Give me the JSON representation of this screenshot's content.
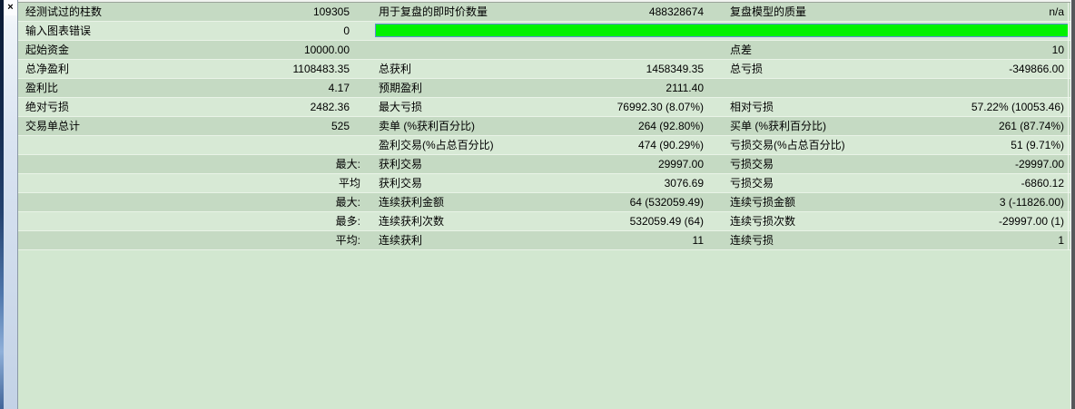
{
  "panel": {
    "close_icon": "×"
  },
  "colors": {
    "row_dark": "#c5dac3",
    "row_light": "#d7e9d5",
    "bar_fill": "#00f200",
    "bar_border": "#5c8ed2"
  },
  "report": {
    "rows": [
      {
        "l1": "经测试过的柱数",
        "v1": "109305",
        "l2": "用于复盘的即时价数量",
        "v2": "488328674",
        "l3": "复盘模型的质量",
        "v3": "n/a"
      },
      {
        "l1": "输入图表错误",
        "v1": "0",
        "bar": true
      },
      {
        "l1": "起始资金",
        "v1": "10000.00",
        "l3": "点差",
        "v3": "10"
      },
      {
        "l1": "总净盈利",
        "v1": "1108483.35",
        "l2": "总获利",
        "v2": "1458349.35",
        "l3": "总亏损",
        "v3": "-349866.00"
      },
      {
        "l1": "盈利比",
        "v1": "4.17",
        "l2": "预期盈利",
        "v2": "2111.40"
      },
      {
        "l1": "绝对亏损",
        "v1": "2482.36",
        "l2": "最大亏损",
        "v2": "76992.30 (8.07%)",
        "l3": "相对亏损",
        "v3": "57.22% (10053.46)"
      },
      {
        "l1": "交易单总计",
        "v1": "525",
        "l2": "卖单 (%获利百分比)",
        "v2": "264 (92.80%)",
        "l3": "买单 (%获利百分比)",
        "v3": "261 (87.74%)"
      },
      {
        "l2": "盈利交易(%占总百分比)",
        "v2": "474 (90.29%)",
        "l3": "亏损交易(%占总百分比)",
        "v3": "51 (9.71%)"
      },
      {
        "v1": "最大:",
        "v1cap": true,
        "l2": "获利交易",
        "v2": "29997.00",
        "l3": "亏损交易",
        "v3": "-29997.00"
      },
      {
        "v1": "平均",
        "v1cap": true,
        "l2": "获利交易",
        "v2": "3076.69",
        "l3": "亏损交易",
        "v3": "-6860.12"
      },
      {
        "v1": "最大:",
        "v1cap": true,
        "l2": "连续获利金额",
        "v2": "64 (532059.49)",
        "l3": "连续亏损金额",
        "v3": "3 (-11826.00)"
      },
      {
        "v1": "最多:",
        "v1cap": true,
        "l2": "连续获利次数",
        "v2": "532059.49 (64)",
        "l3": "连续亏损次数",
        "v3": "-29997.00 (1)"
      },
      {
        "v1": "平均:",
        "v1cap": true,
        "l2": "连续获利",
        "v2": "11",
        "l3": "连续亏损",
        "v3": "1"
      }
    ]
  }
}
